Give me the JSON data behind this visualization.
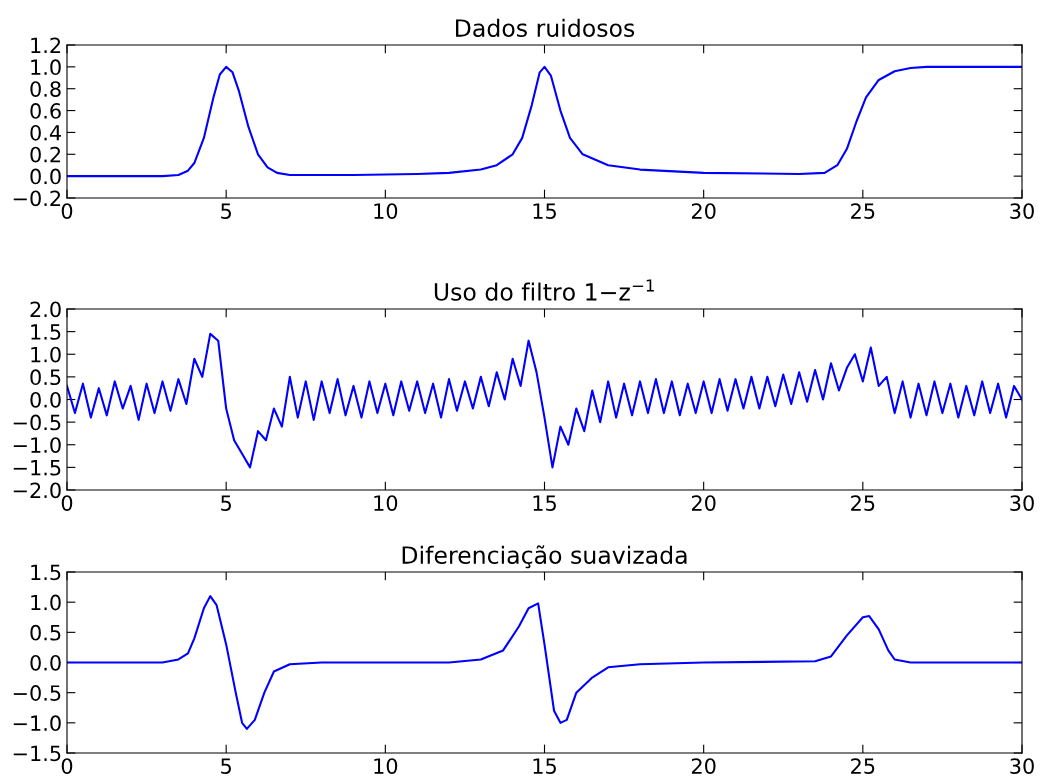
{
  "chart_data": [
    {
      "type": "line",
      "title": "Dados ruidosos",
      "xlim": [
        0,
        30
      ],
      "xticks": [
        0,
        5,
        10,
        15,
        20,
        25,
        30
      ],
      "ylim": [
        -0.2,
        1.2
      ],
      "yticks": [
        {
          "value": -0.2,
          "label": "−0.2"
        },
        {
          "value": 0,
          "label": "0.0"
        },
        0.2,
        0.4,
        0.6,
        0.8,
        {
          "value": 1,
          "label": "1.0"
        },
        1.2
      ],
      "grid": false,
      "legend": false,
      "marker": "none",
      "line_style": "solid",
      "x": [
        0,
        3,
        3.5,
        3.8,
        4,
        4.3,
        4.6,
        4.8,
        5,
        5.2,
        5.4,
        5.7,
        6,
        6.3,
        6.6,
        7,
        9,
        11,
        12,
        13,
        13.5,
        14,
        14.3,
        14.6,
        14.85,
        15,
        15.2,
        15.5,
        15.8,
        16.2,
        17,
        18,
        20,
        23,
        23.8,
        24.2,
        24.5,
        24.8,
        25.1,
        25.5,
        26,
        26.5,
        27,
        30
      ],
      "series": [
        {
          "color": "#0000ff",
          "values": [
            0.0,
            0.0,
            0.01,
            0.05,
            0.12,
            0.35,
            0.72,
            0.93,
            1.0,
            0.95,
            0.78,
            0.45,
            0.2,
            0.08,
            0.03,
            0.01,
            0.01,
            0.02,
            0.03,
            0.06,
            0.1,
            0.2,
            0.35,
            0.65,
            0.95,
            1.0,
            0.92,
            0.6,
            0.35,
            0.2,
            0.1,
            0.06,
            0.03,
            0.02,
            0.03,
            0.1,
            0.25,
            0.5,
            0.72,
            0.88,
            0.96,
            0.99,
            1.0,
            1.0
          ]
        }
      ]
    },
    {
      "type": "line",
      "title": "Uso do filtro 1−z$^{−1}$",
      "xlim": [
        0,
        30
      ],
      "xticks": [
        0,
        5,
        10,
        15,
        20,
        25,
        30
      ],
      "ylim": [
        -2.0,
        2.0
      ],
      "yticks": [
        {
          "value": -2.0,
          "label": "−2.0"
        },
        {
          "value": -1.5,
          "label": "−1.5"
        },
        {
          "value": -1.0,
          "label": "−1.0"
        },
        {
          "value": -0.5,
          "label": "−0.5"
        },
        {
          "value": 0,
          "label": "0.0"
        },
        0.5,
        {
          "value": 1,
          "label": "1.0"
        },
        1.5,
        {
          "value": 2,
          "label": "2.0"
        }
      ],
      "grid": false,
      "legend": false,
      "marker": "none",
      "line_style": "solid",
      "x": [
        0,
        0.25,
        0.5,
        0.75,
        1,
        1.25,
        1.5,
        1.75,
        2,
        2.25,
        2.5,
        2.75,
        3,
        3.25,
        3.5,
        3.75,
        4,
        4.25,
        4.5,
        4.75,
        5,
        5.25,
        5.5,
        5.75,
        6,
        6.25,
        6.5,
        6.75,
        7,
        7.25,
        7.5,
        7.75,
        8,
        8.25,
        8.5,
        8.75,
        9,
        9.25,
        9.5,
        9.75,
        10,
        10.25,
        10.5,
        10.75,
        11,
        11.25,
        11.5,
        11.75,
        12,
        12.25,
        12.5,
        12.75,
        13,
        13.25,
        13.5,
        13.75,
        14,
        14.25,
        14.5,
        14.75,
        15,
        15.25,
        15.5,
        15.75,
        16,
        16.25,
        16.5,
        16.75,
        17,
        17.25,
        17.5,
        17.75,
        18,
        18.25,
        18.5,
        18.75,
        19,
        19.25,
        19.5,
        19.75,
        20,
        20.25,
        20.5,
        20.75,
        21,
        21.25,
        21.5,
        21.75,
        22,
        22.25,
        22.5,
        22.75,
        23,
        23.25,
        23.5,
        23.75,
        24,
        24.25,
        24.5,
        24.75,
        25,
        25.25,
        25.5,
        25.75,
        26,
        26.25,
        26.5,
        26.75,
        27,
        27.25,
        27.5,
        27.75,
        28,
        28.25,
        28.5,
        28.75,
        29,
        29.25,
        29.5,
        29.75,
        30
      ],
      "series": [
        {
          "color": "#0000ff",
          "values": [
            0.3,
            -0.3,
            0.35,
            -0.4,
            0.25,
            -0.35,
            0.4,
            -0.2,
            0.3,
            -0.45,
            0.35,
            -0.3,
            0.4,
            -0.25,
            0.45,
            -0.1,
            0.9,
            0.5,
            1.45,
            1.3,
            -0.2,
            -0.9,
            -1.2,
            -1.5,
            -0.7,
            -0.9,
            -0.2,
            -0.6,
            0.5,
            -0.4,
            0.4,
            -0.45,
            0.4,
            -0.3,
            0.45,
            -0.35,
            0.3,
            -0.4,
            0.4,
            -0.3,
            0.35,
            -0.35,
            0.4,
            -0.25,
            0.4,
            -0.3,
            0.35,
            -0.4,
            0.45,
            -0.25,
            0.4,
            -0.2,
            0.5,
            -0.15,
            0.6,
            0.0,
            0.9,
            0.3,
            1.3,
            0.6,
            -0.4,
            -1.5,
            -0.6,
            -1.0,
            -0.2,
            -0.7,
            0.2,
            -0.5,
            0.4,
            -0.4,
            0.35,
            -0.35,
            0.4,
            -0.3,
            0.45,
            -0.3,
            0.4,
            -0.35,
            0.35,
            -0.3,
            0.4,
            -0.3,
            0.45,
            -0.25,
            0.45,
            -0.2,
            0.5,
            -0.2,
            0.5,
            -0.15,
            0.55,
            -0.1,
            0.6,
            -0.05,
            0.65,
            0.0,
            0.8,
            0.2,
            0.7,
            1.0,
            0.4,
            1.15,
            0.3,
            0.5,
            -0.3,
            0.4,
            -0.4,
            0.35,
            -0.35,
            0.4,
            -0.3,
            0.35,
            -0.4,
            0.3,
            -0.35,
            0.4,
            -0.3,
            0.35,
            -0.4,
            0.3,
            0.0
          ]
        }
      ]
    },
    {
      "type": "line",
      "title": "Diferenciação suavizada",
      "xlim": [
        0,
        30
      ],
      "xticks": [
        0,
        5,
        10,
        15,
        20,
        25,
        30
      ],
      "ylim": [
        -1.5,
        1.5
      ],
      "yticks": [
        {
          "value": -1.5,
          "label": "−1.5"
        },
        {
          "value": -1.0,
          "label": "−1.0"
        },
        {
          "value": -0.5,
          "label": "−0.5"
        },
        {
          "value": 0,
          "label": "0.0"
        },
        0.5,
        {
          "value": 1,
          "label": "1.0"
        },
        1.5
      ],
      "grid": false,
      "legend": false,
      "marker": "none",
      "line_style": "solid",
      "x": [
        0,
        3,
        3.5,
        3.8,
        4,
        4.3,
        4.5,
        4.7,
        5,
        5.3,
        5.5,
        5.65,
        5.9,
        6.2,
        6.5,
        7,
        8,
        12,
        13,
        13.7,
        14.2,
        14.5,
        14.8,
        15.0,
        15.3,
        15.5,
        15.7,
        16,
        16.5,
        17,
        18,
        20,
        23.5,
        24,
        24.5,
        25,
        25.2,
        25.5,
        25.8,
        26,
        26.5,
        30
      ],
      "series": [
        {
          "color": "#0000ff",
          "values": [
            0.0,
            0.0,
            0.05,
            0.15,
            0.4,
            0.9,
            1.1,
            0.95,
            0.3,
            -0.5,
            -1.0,
            -1.1,
            -0.95,
            -0.5,
            -0.15,
            -0.03,
            0.0,
            0.0,
            0.05,
            0.2,
            0.6,
            0.9,
            0.98,
            0.3,
            -0.8,
            -1.0,
            -0.95,
            -0.5,
            -0.25,
            -0.08,
            -0.03,
            0.0,
            0.02,
            0.1,
            0.45,
            0.75,
            0.77,
            0.55,
            0.2,
            0.05,
            0.0,
            0.0
          ]
        }
      ]
    }
  ]
}
